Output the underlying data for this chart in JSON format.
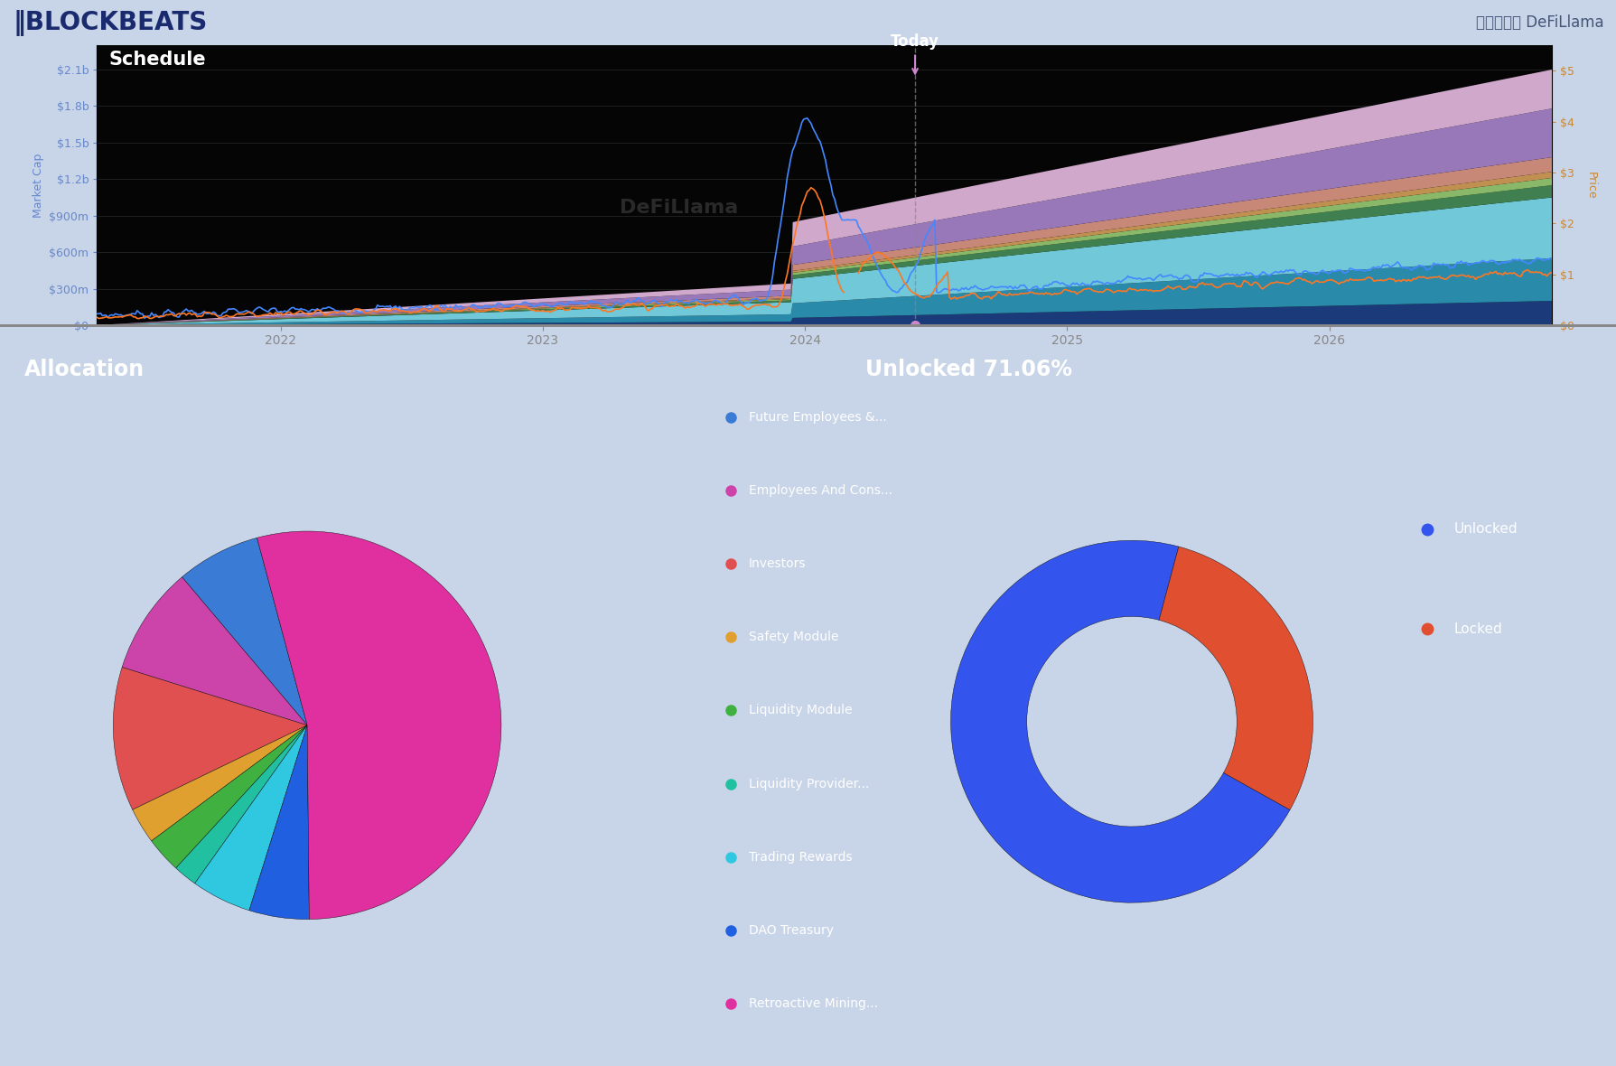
{
  "header_bg": "#c8d4e8",
  "chart_bg": "#050505",
  "bottom_bg": "#050505",
  "title": "Schedule",
  "logo_text": "‖BLOCKBEATS",
  "source_text": "数据来源： DeFiLlama",
  "today_label": "Today",
  "allocation_title": "Allocation",
  "unlocked_title": "Unlocked 71.06%",
  "unlocked_pct": 71.06,
  "locked_pct": 28.94,
  "unlocked_color": "#3355ee",
  "locked_color": "#e05030",
  "left_yticks": [
    "$0",
    "$300m",
    "$600m",
    "$900m",
    "$1.2b",
    "$1.5b",
    "$1.8b",
    "$2.1b"
  ],
  "left_ytick_vals": [
    0,
    300,
    600,
    900,
    1200,
    1500,
    1800,
    2100
  ],
  "right_yticks": [
    "$0",
    "$1",
    "$2",
    "$3",
    "$4",
    "$5"
  ],
  "right_ytick_vals": [
    0,
    1,
    2,
    3,
    4,
    5
  ],
  "xtick_labels": [
    "2022",
    "2023",
    "2024",
    "2025",
    "2026"
  ],
  "stack_colors_bottom_to_top": [
    "#1a3a7a",
    "#2a7aaa",
    "#50b8c8",
    "#40a060",
    "#88c878",
    "#c8a060",
    "#b06030",
    "#cc8888",
    "#b080b8",
    "#d8a8d0"
  ],
  "pie_labels": [
    "Future Employees &...",
    "Employees And Cons...",
    "Investors",
    "Safety Module",
    "Liquidity Module",
    "Liquidity Provider...",
    "Trading Rewards",
    "DAO Treasury",
    "Retroactive Mining..."
  ],
  "pie_colors": [
    "#3a7bd5",
    "#cc44aa",
    "#e05050",
    "#e0a030",
    "#40b040",
    "#20c0a0",
    "#30c8e0",
    "#2060e0",
    "#e030a0"
  ],
  "pie_sizes": [
    7,
    9,
    12,
    3,
    3,
    2,
    5,
    5,
    54
  ],
  "unlocked_legend": [
    "Unlocked",
    "Locked"
  ],
  "unlocked_legend_colors": [
    "#3355ee",
    "#e05030"
  ]
}
